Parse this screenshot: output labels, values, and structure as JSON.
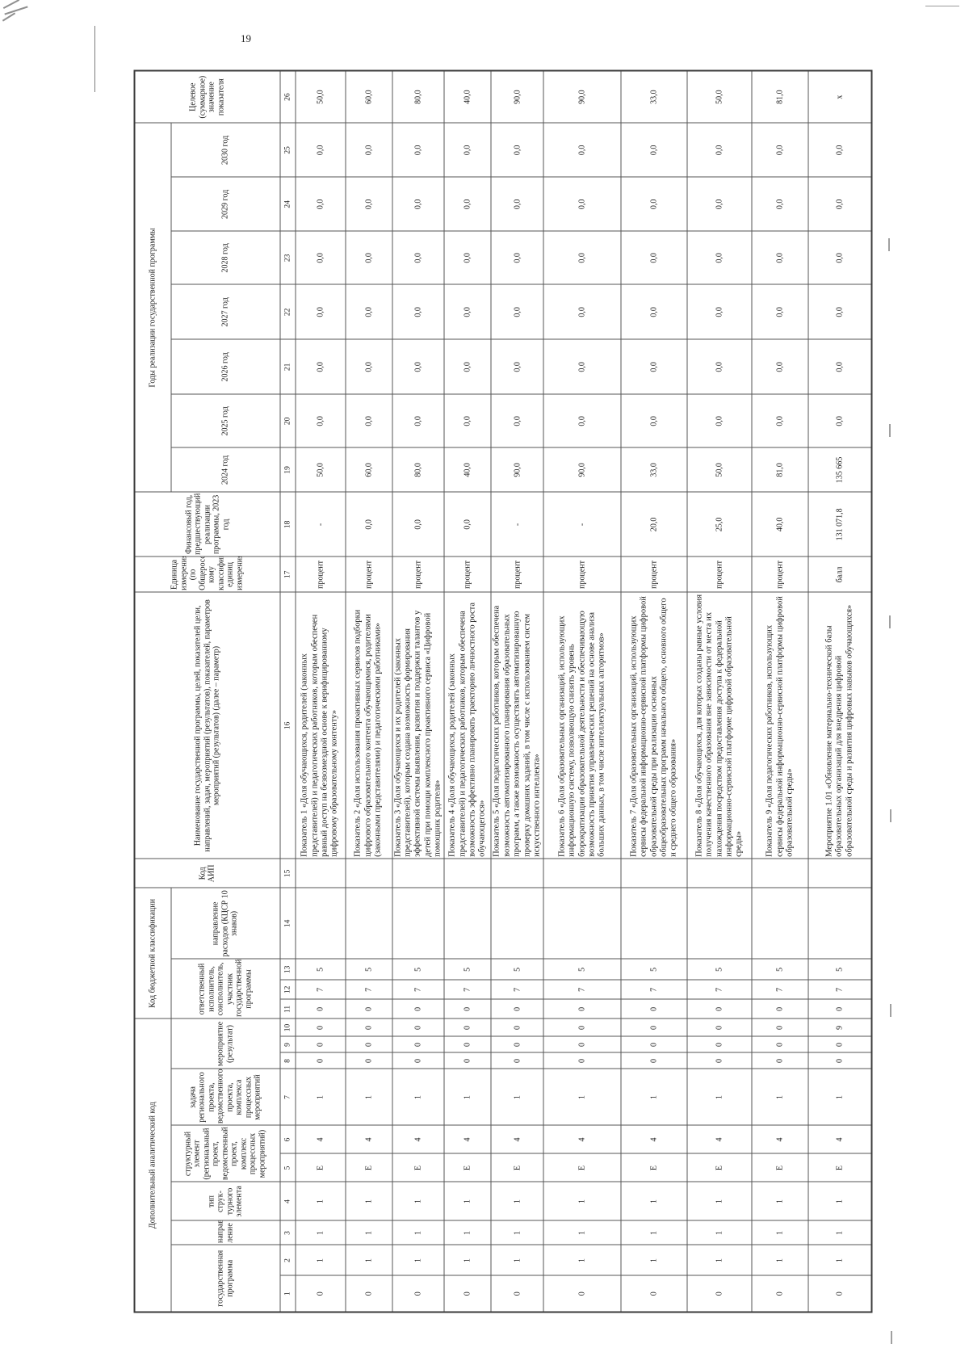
{
  "page": {
    "number": "19"
  },
  "table": {
    "header": {
      "group_analytical_code": "Дополнительный аналитический код",
      "group_budget_code": "Код бюджетной классификации",
      "group_years": "Годы реализации государственной программы",
      "col_gosprogram": "государст­венная программа",
      "col_napravlenie": "направ­ление",
      "col_type": "тип струк­турного элемента",
      "col_structural_element": "структурный элемент (региональный проект, ведомственный проект, комплекс процессных мероприятий)",
      "col_task": "задача регионального проекта, ведомственного проекта, комплекса процессных мероприятий",
      "col_meropriyatie": "мероприятие (результат)",
      "col_executor": "ответственный исполнитель, соисполнитель, участник государственной программы",
      "col_expense_direction": "направление расходов (КЦСР 10 знаков)",
      "col_aip": "Код АИП",
      "col_name": "Наименование государственной программы, целей, показателей цели, направлений, задач, мероприятий (результатов), показателей, параметров мероприятий (результатов) (далее – параметр)",
      "col_unit": "Единица измерения (по Общероссийс­кому классификатору единиц измерения)",
      "col_fin_year": "Финансовый год, предшествующий реализации программы, 2023 год",
      "col_target": "Целевое (суммарное) значение показателя",
      "years": [
        "2024 год",
        "2025 год",
        "2026 год",
        "2027 год",
        "2028 год",
        "2029 год",
        "2030 год"
      ]
    },
    "column_numbers": [
      "1",
      "2",
      "3",
      "4",
      "5",
      "6",
      "7",
      "8",
      "9",
      "10",
      "11",
      "12",
      "13",
      "14",
      "15",
      "16",
      "17",
      "18",
      "19",
      "20",
      "21",
      "22",
      "23",
      "24",
      "25",
      "26"
    ],
    "rows": [
      {
        "codes": [
          "0",
          "1",
          "1",
          "1",
          "Е",
          "4",
          "1",
          "0",
          "0",
          "0",
          "0",
          "7",
          "5",
          "",
          ""
        ],
        "name": "Показатель 1 «Доля обучающихся, родителей (законных представителей) и педагогических работников, которым обеспечен равный доступ на безвозмездной основе к верифицированному цифровому образовательному контенту»",
        "unit": "процент",
        "fin_2023": "-",
        "years": [
          "50,0",
          "0,0",
          "0,0",
          "0,0",
          "0,0",
          "0,0",
          "0,0"
        ],
        "target": "50,0"
      },
      {
        "codes": [
          "0",
          "1",
          "1",
          "1",
          "Е",
          "4",
          "1",
          "0",
          "0",
          "0",
          "0",
          "7",
          "5",
          "",
          ""
        ],
        "name": "Показатель 2 «Доля использования проактивных сервисов подборки цифрового образовательного контента обучающимися, родителями (законными представителями) и педагогическими работниками»",
        "unit": "процент",
        "fin_2023": "0,0",
        "years": [
          "60,0",
          "0,0",
          "0,0",
          "0,0",
          "0,0",
          "0,0",
          "0,0"
        ],
        "target": "60,0"
      },
      {
        "codes": [
          "0",
          "1",
          "1",
          "1",
          "Е",
          "4",
          "1",
          "0",
          "0",
          "0",
          "0",
          "7",
          "5",
          "",
          ""
        ],
        "name": "Показатель 3 «Доля обучающихся и их родителей (законных представителей), которым создана возможность формирования эффективной системы выявления, развития и поддержки талантов у детей при помощи комплексного проактивного сервиса «Цифровой помощник родителя»",
        "unit": "процент",
        "fin_2023": "0,0",
        "years": [
          "80,0",
          "0,0",
          "0,0",
          "0,0",
          "0,0",
          "0,0",
          "0,0"
        ],
        "target": "80,0"
      },
      {
        "codes": [
          "0",
          "1",
          "1",
          "1",
          "Е",
          "4",
          "1",
          "0",
          "0",
          "0",
          "0",
          "7",
          "5",
          "",
          ""
        ],
        "name": "Показатель 4 «Доля обучающихся, родителей (законных представителей) и педагогических работников, которым обеспечена возможность эффективно планировать траекторию личностного роста обучающегося»",
        "unit": "процент",
        "fin_2023": "0,0",
        "years": [
          "40,0",
          "0,0",
          "0,0",
          "0,0",
          "0,0",
          "0,0",
          "0,0"
        ],
        "target": "40,0"
      },
      {
        "codes": [
          "0",
          "1",
          "1",
          "1",
          "Е",
          "4",
          "1",
          "0",
          "0",
          "0",
          "0",
          "7",
          "5",
          "",
          ""
        ],
        "name": "Показатель 5 «Доля педагогических работников, которым обеспечена возможность автоматизированного планирования образовательных программ, а также возможность осуществлять автоматизированную проверку домашних заданий, в том числе с использованием систем искусственного интеллекта»",
        "unit": "процент",
        "fin_2023": "-",
        "years": [
          "90,0",
          "0,0",
          "0,0",
          "0,0",
          "0,0",
          "0,0",
          "0,0"
        ],
        "target": "90,0"
      },
      {
        "codes": [
          "0",
          "1",
          "1",
          "1",
          "Е",
          "4",
          "1",
          "0",
          "0",
          "0",
          "0",
          "7",
          "5",
          "",
          ""
        ],
        "name": "Показатель 6 «Доля образовательных организаций, использующих информационную систему, позволяющую снизить уровень бюрократизации образовательной деятельности и обеспечивающую возможность принятия управленческих решений на основе анализа больших данных, в том числе интеллектуальных алгоритмов»",
        "unit": "процент",
        "fin_2023": "-",
        "years": [
          "90,0",
          "0,0",
          "0,0",
          "0,0",
          "0,0",
          "0,0",
          "0,0"
        ],
        "target": "90,0"
      },
      {
        "codes": [
          "0",
          "1",
          "1",
          "1",
          "Е",
          "4",
          "1",
          "0",
          "0",
          "0",
          "0",
          "7",
          "5",
          "",
          ""
        ],
        "name": "Показатель 7 «Доля образовательных организаций, использующих сервисы федеральной информационно-сервисной платформы цифровой образовательной среды при реализации основных общеобразовательных программ начального общего, основного общего и среднего общего образования»",
        "unit": "процент",
        "fin_2023": "20,0",
        "years": [
          "33,0",
          "0,0",
          "0,0",
          "0,0",
          "0,0",
          "0,0",
          "0,0"
        ],
        "target": "33,0"
      },
      {
        "codes": [
          "0",
          "1",
          "1",
          "1",
          "Е",
          "4",
          "1",
          "0",
          "0",
          "0",
          "0",
          "7",
          "5",
          "",
          ""
        ],
        "name": "Показатель 8 «Доля обучающихся, для которых созданы равные условия получения качественного образования вне зависимости от места их нахождения посредством предоставления доступа к федеральной информационно-сервисной платформе цифровой образовательной среды»",
        "unit": "процент",
        "fin_2023": "25,0",
        "years": [
          "50,0",
          "0,0",
          "0,0",
          "0,0",
          "0,0",
          "0,0",
          "0,0"
        ],
        "target": "50,0"
      },
      {
        "codes": [
          "0",
          "1",
          "1",
          "1",
          "Е",
          "4",
          "1",
          "0",
          "0",
          "0",
          "0",
          "7",
          "5",
          "",
          ""
        ],
        "name": "Показатель 9 «Доля педагогических работников, использующих сервисы федеральной информационно-сервисной платформы цифровой образовательной среды»",
        "unit": "процент",
        "fin_2023": "40,0",
        "years": [
          "81,0",
          "0,0",
          "0,0",
          "0,0",
          "0,0",
          "0,0",
          "0,0"
        ],
        "target": "81,0"
      },
      {
        "codes": [
          "0",
          "1",
          "1",
          "1",
          "Е",
          "4",
          "1",
          "0",
          "0",
          "9",
          "0",
          "7",
          "5",
          "",
          ""
        ],
        "name": "Мероприятие 1.01 «Обновление материально-технической базы образовательных организаций для внедрения цифровой образовательной среды и развития цифровых навыков обучающихся»",
        "unit": "балл",
        "fin_2023": "131 071,8",
        "years": [
          "135 665",
          "0,0",
          "0,0",
          "0,0",
          "0,0",
          "0,0",
          "0,0"
        ],
        "target": "x"
      }
    ]
  }
}
